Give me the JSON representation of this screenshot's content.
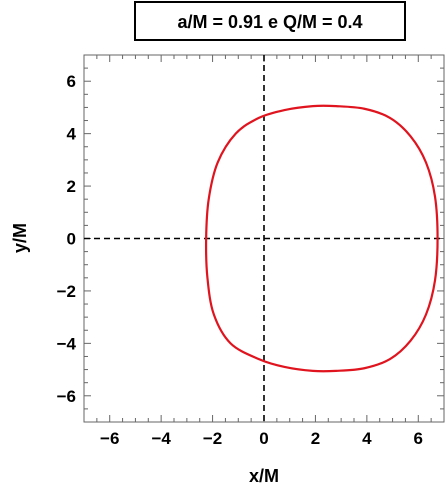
{
  "chart_data": {
    "type": "line",
    "title": "a/M = 0.91 e Q/M = 0.4",
    "xlabel": "x/M",
    "ylabel": "y/M",
    "xlim": [
      -7,
      7
    ],
    "ylim": [
      -7,
      7
    ],
    "xticks": [
      -6,
      -4,
      -2,
      0,
      2,
      4,
      6
    ],
    "yticks": [
      -6,
      -4,
      -2,
      0,
      2,
      4,
      6
    ],
    "xtick_labels": [
      "−6",
      "−4",
      "−2",
      "0",
      "2",
      "4",
      "6"
    ],
    "ytick_labels": [
      "−6",
      "−4",
      "−2",
      "0",
      "2",
      "4",
      "6"
    ],
    "grid": false,
    "reference_lines": [
      {
        "orientation": "vertical",
        "value": 0,
        "style": "dashed",
        "color": "#000000"
      },
      {
        "orientation": "horizontal",
        "value": 0,
        "style": "dashed",
        "color": "#000000"
      }
    ],
    "series": [
      {
        "color": "#e0141e",
        "closed": true,
        "x": [
          6.75,
          6.65,
          6.3,
          5.7,
          4.9,
          3.9,
          2.8,
          1.9,
          0.8,
          -0.2,
          -1.1,
          -1.8,
          -2.15,
          -2.25,
          -2.2,
          -1.95,
          -1.3,
          -0.2,
          0.8,
          1.9,
          2.8,
          3.9,
          4.9,
          5.7,
          6.3,
          6.65
        ],
        "y": [
          0.0,
          1.6,
          2.9,
          3.9,
          4.6,
          4.95,
          5.05,
          5.05,
          4.9,
          4.6,
          4.0,
          2.9,
          1.5,
          0.0,
          -1.5,
          -2.9,
          -4.0,
          -4.6,
          -4.9,
          -5.05,
          -5.05,
          -4.95,
          -4.6,
          -3.9,
          -2.9,
          -1.6
        ]
      }
    ]
  }
}
